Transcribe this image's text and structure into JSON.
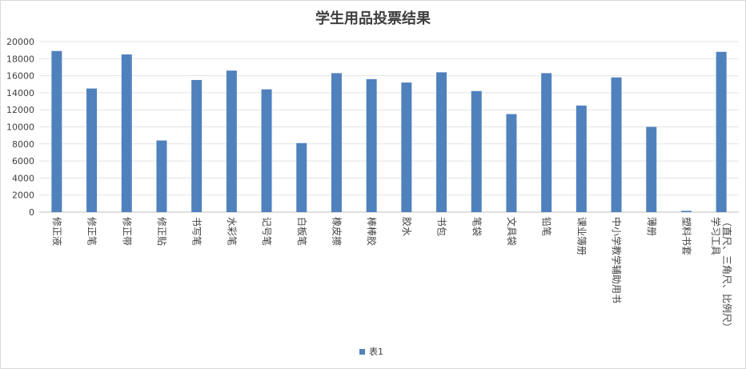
{
  "chart_data": {
    "type": "bar",
    "title": "学生用品投票结果",
    "categories": [
      "修正液",
      "修正笔",
      "修正带",
      "修正贴",
      "书写笔",
      "水彩笔",
      "记号笔",
      "白板笔",
      "橡皮擦",
      "棒棒胶",
      "胶水",
      "书包",
      "笔袋",
      "文具袋",
      "铅笔",
      "课业簿册",
      "中小学教学辅助用书",
      "薄册",
      "塑料书套",
      "学习工具|（直尺、三角尺、比例尺）"
    ],
    "series": [
      {
        "name": "表1",
        "values": [
          18900,
          14500,
          18500,
          8400,
          15500,
          16600,
          14400,
          8100,
          16300,
          15600,
          15200,
          16400,
          14200,
          11500,
          16300,
          12500,
          15800,
          10000,
          150,
          18800
        ],
        "color": "#4f81bd"
      }
    ],
    "ylim": [
      0,
      20000
    ],
    "yticks": [
      0,
      2000,
      4000,
      6000,
      8000,
      10000,
      12000,
      14000,
      16000,
      18000,
      20000
    ],
    "grid": true,
    "legend_position": "bottom"
  }
}
